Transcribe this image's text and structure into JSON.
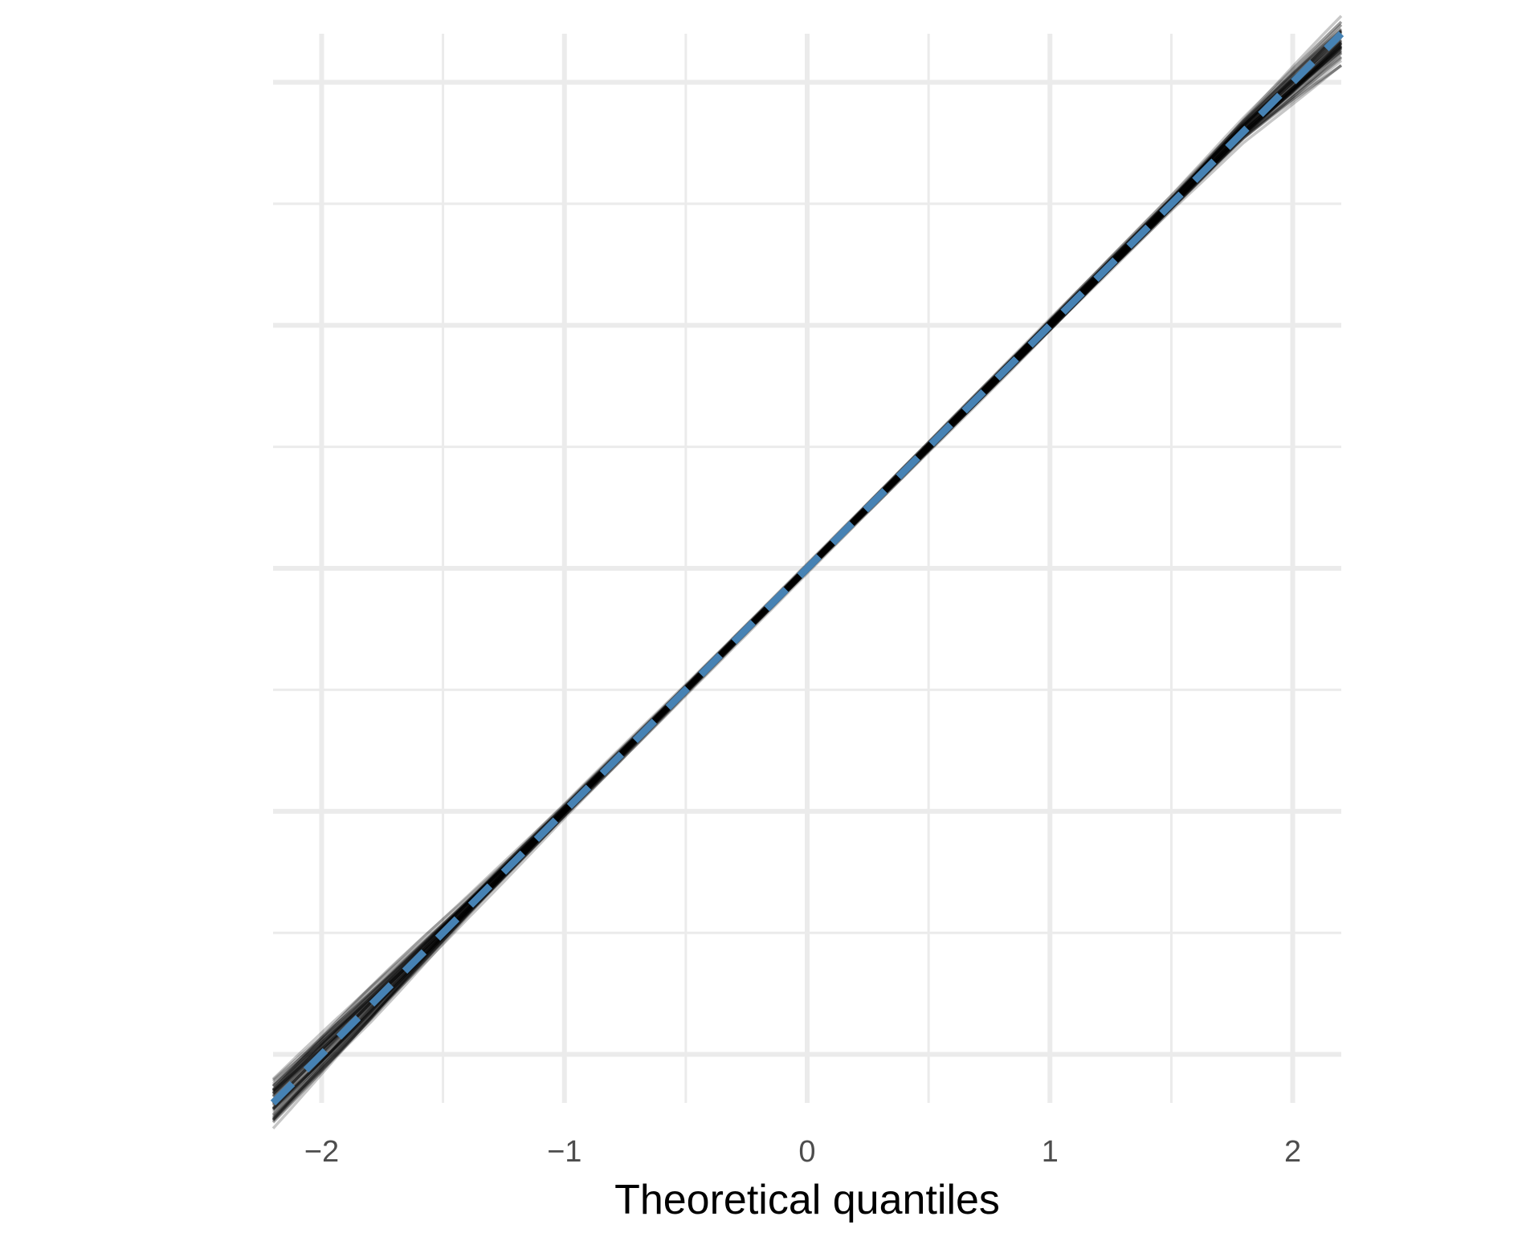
{
  "chart_data": {
    "type": "line",
    "title": "",
    "xlabel": "Theoretical quantiles",
    "ylabel": "",
    "x_ticks": [
      -2,
      -1,
      0,
      1,
      2
    ],
    "x_tick_labels": [
      "−2",
      "−1",
      "0",
      "1",
      "2"
    ],
    "y_ticks": [
      -2,
      -1,
      0,
      1,
      2
    ],
    "y_tick_labels": [],
    "xlim": [
      -2.2,
      2.2
    ],
    "ylim": [
      -2.2,
      2.2
    ],
    "grid": true,
    "legend": "none",
    "n_simulated_series": 60,
    "series": [
      {
        "role": "reference",
        "style": "dashed",
        "color": "#4682b4",
        "x": [
          -2.2,
          2.2
        ],
        "y": [
          -2.2,
          2.2
        ]
      },
      {
        "role": "simulated-band",
        "style": "semi-transparent lines",
        "color": "#000000",
        "x": [
          -2.2,
          -1.8,
          -1.4,
          -1.0,
          -0.5,
          0.0,
          0.5,
          1.0,
          1.5,
          1.8,
          2.2
        ],
        "lower": [
          -2.35,
          -1.93,
          -1.47,
          -1.04,
          -0.53,
          -0.03,
          0.47,
          0.96,
          1.45,
          1.73,
          2.02
        ],
        "upper": [
          -2.05,
          -1.68,
          -1.33,
          -0.96,
          -0.47,
          0.03,
          0.53,
          1.04,
          1.55,
          1.88,
          2.3
        ]
      }
    ]
  },
  "colors": {
    "grid": "#ebebeb",
    "reference_line": "#4682b4",
    "simulated_lines": "#000000",
    "tick_text": "#4d4d4d"
  }
}
